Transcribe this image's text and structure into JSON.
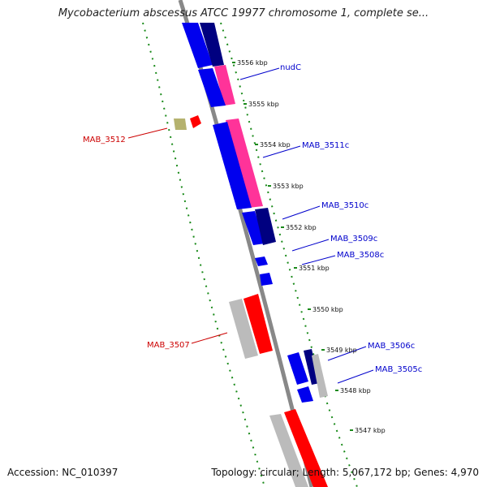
{
  "title": "Mycobacterium abscessus ATCC 19977 chromosome 1, complete se...",
  "footer": {
    "accession": "Accession: NC_010397",
    "summary": "Topology: circular; Length: 5,067,172 bp; Genes: 4,970"
  },
  "colors": {
    "forward_strand": "#0000ee",
    "reverse_strand": "#ff3399",
    "hypothetical": "#ff0000",
    "pseudo": "#bbbbbb",
    "dark": "#000080",
    "olive": "#b5b26e",
    "backbone": "#888888",
    "ruler": "#1a8a1a",
    "label_blue": "#0000cc",
    "label_red": "#cc0000"
  },
  "ticks": [
    {
      "label": "3556 kbp"
    },
    {
      "label": "3555 kbp"
    },
    {
      "label": "3554 kbp"
    },
    {
      "label": "3553 kbp"
    },
    {
      "label": "3552 kbp"
    },
    {
      "label": "3551 kbp"
    },
    {
      "label": "3550 kbp"
    },
    {
      "label": "3549 kbp"
    },
    {
      "label": "3548 kbp"
    },
    {
      "label": "3547 kbp"
    }
  ],
  "gene_labels": [
    {
      "name": "nudC",
      "color": "blue"
    },
    {
      "name": "MAB_3512",
      "color": "red"
    },
    {
      "name": "MAB_3511c",
      "color": "blue"
    },
    {
      "name": "MAB_3510c",
      "color": "blue"
    },
    {
      "name": "MAB_3509c",
      "color": "blue"
    },
    {
      "name": "MAB_3508c",
      "color": "blue"
    },
    {
      "name": "MAB_3507",
      "color": "red"
    },
    {
      "name": "MAB_3506c",
      "color": "blue"
    },
    {
      "name": "MAB_3505c",
      "color": "blue"
    }
  ]
}
